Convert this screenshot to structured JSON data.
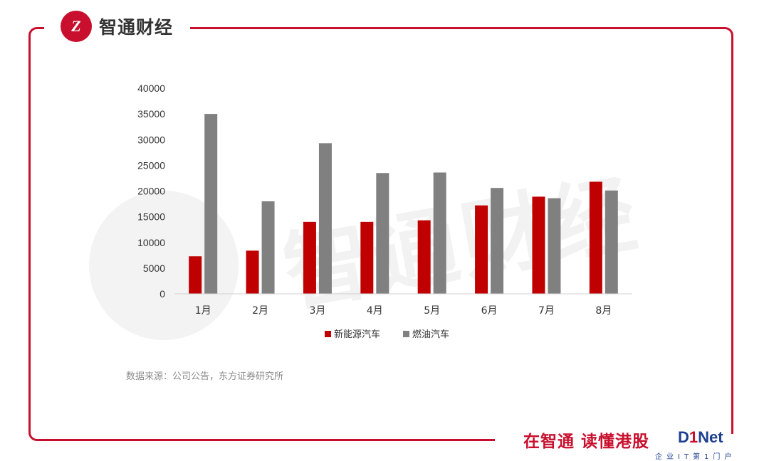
{
  "brand": {
    "logo_mark": "Z",
    "name": "智通财经"
  },
  "watermark": "智通财经",
  "source_note": "数据来源：公司公告，东方证券研究所",
  "slogan": "在智通 读懂港股",
  "corner_logo": {
    "prefix": "D",
    "accent": "1",
    "suffix": "Net",
    "subtitle": "企业IT第1门户"
  },
  "colors": {
    "accent": "#c8102e",
    "nev": "#c00000",
    "fuel": "#808080"
  },
  "chart_data": {
    "type": "bar",
    "categories": [
      "1月",
      "2月",
      "3月",
      "4月",
      "5月",
      "6月",
      "7月",
      "8月"
    ],
    "series": [
      {
        "name": "新能源汽车",
        "values": [
          7300,
          8400,
          14000,
          14000,
          14300,
          17200,
          18900,
          21800
        ]
      },
      {
        "name": "燃油汽车",
        "values": [
          35000,
          18000,
          29300,
          23500,
          23600,
          20600,
          18600,
          20100
        ]
      }
    ],
    "yticks": [
      "0",
      "5000",
      "10000",
      "15000",
      "20000",
      "25000",
      "30000",
      "35000",
      "40000"
    ],
    "ylim": [
      0,
      40000
    ],
    "grid": false,
    "legend": "bottom"
  }
}
